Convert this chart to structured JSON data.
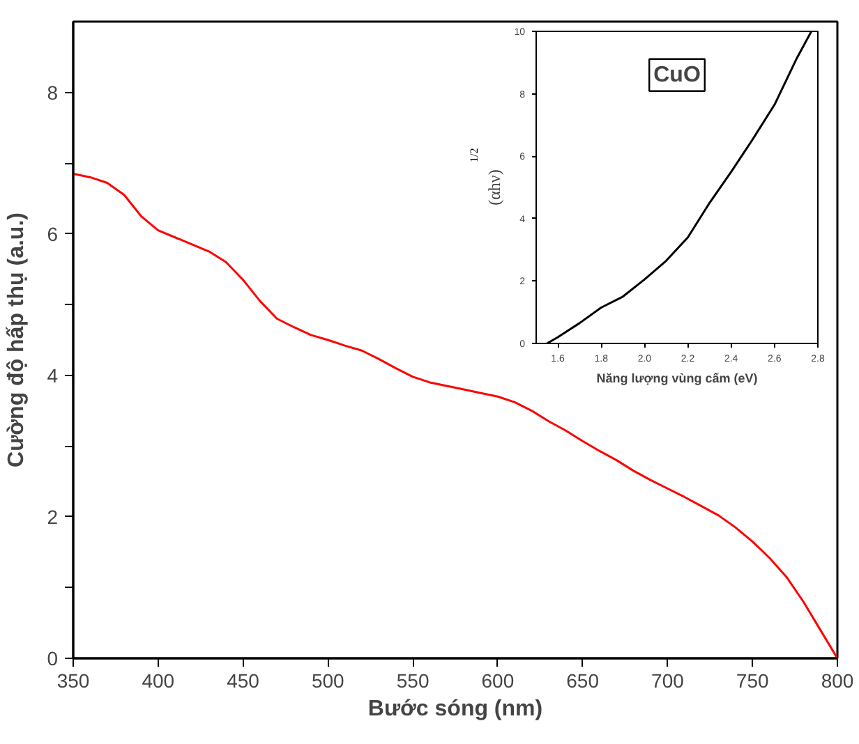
{
  "chart_data": [
    {
      "type": "line",
      "xlabel": "Bước sóng (nm)",
      "ylabel": "Cường độ hấp thụ (a.u.)",
      "xlim": [
        350,
        800
      ],
      "ylim": [
        0,
        9
      ],
      "xticks": [
        350,
        400,
        450,
        500,
        550,
        600,
        650,
        700,
        750,
        800
      ],
      "yticks": [
        0,
        {
          "value": 1,
          "label": null
        },
        2,
        {
          "value": 3,
          "label": null
        },
        4,
        {
          "value": 5,
          "label": null
        },
        6,
        {
          "value": 7,
          "label": null
        },
        8
      ],
      "grid": false,
      "marker": "none",
      "line_style": "solid",
      "series": [
        {
          "color": "#ff0000",
          "x": [
            350,
            360,
            370,
            380,
            390,
            400,
            410,
            420,
            430,
            440,
            450,
            460,
            470,
            480,
            490,
            500,
            510,
            520,
            530,
            540,
            550,
            560,
            570,
            580,
            590,
            600,
            610,
            620,
            630,
            640,
            650,
            660,
            670,
            680,
            690,
            700,
            710,
            720,
            730,
            740,
            750,
            760,
            770,
            780,
            790,
            800
          ],
          "values": [
            6.85,
            6.8,
            6.72,
            6.55,
            6.25,
            6.05,
            5.95,
            5.85,
            5.75,
            5.6,
            5.35,
            5.05,
            4.8,
            4.68,
            4.57,
            4.5,
            4.42,
            4.35,
            4.23,
            4.1,
            3.98,
            3.9,
            3.85,
            3.8,
            3.75,
            3.7,
            3.62,
            3.5,
            3.35,
            3.22,
            3.07,
            2.93,
            2.8,
            2.65,
            2.52,
            2.4,
            2.28,
            2.15,
            2.02,
            1.85,
            1.65,
            1.42,
            1.15,
            0.8,
            0.4,
            0
          ]
        }
      ]
    },
    {
      "type": "line",
      "xlabel": "Năng lượng vùng cấm (eV)",
      "ylabel": "(αhν)$^{1/2}$",
      "xlim": [
        1.5,
        2.8
      ],
      "ylim": [
        0,
        10
      ],
      "xticks": [
        {
          "value": 1.6,
          "label": "1.6"
        },
        {
          "value": 1.8,
          "label": "1.8"
        },
        {
          "value": 2.0,
          "label": "2.0"
        },
        {
          "value": 2.2,
          "label": "2.2"
        },
        {
          "value": 2.4,
          "label": "2.4"
        },
        {
          "value": 2.6,
          "label": "2.6"
        },
        {
          "value": 2.8,
          "label": "2.8"
        }
      ],
      "yticks": [
        0,
        2,
        4,
        6,
        8,
        10
      ],
      "grid": false,
      "marker": "none",
      "line_style": "solid",
      "annotations": [
        "CuO"
      ],
      "series": [
        {
          "color": "#000000",
          "x": [
            1.55,
            1.6,
            1.7,
            1.8,
            1.9,
            2.0,
            2.1,
            2.2,
            2.3,
            2.4,
            2.5,
            2.6,
            2.7,
            2.77
          ],
          "values": [
            0,
            0.2,
            0.65,
            1.15,
            1.5,
            2.05,
            2.65,
            3.4,
            4.5,
            5.5,
            6.55,
            7.65,
            9.1,
            10
          ]
        }
      ]
    }
  ]
}
